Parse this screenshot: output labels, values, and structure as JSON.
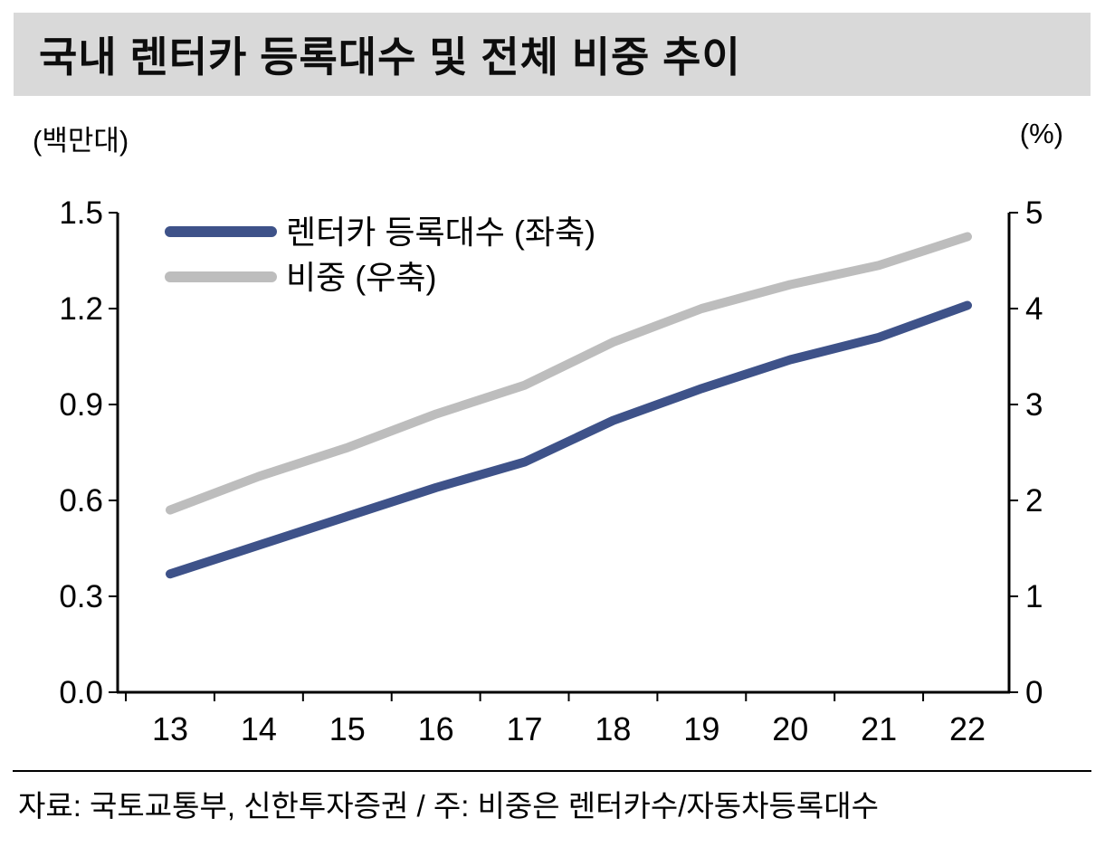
{
  "header": {
    "title": "국내 렌터카 등록대수 및 전체 비중 추이"
  },
  "axes": {
    "left_unit": "(백만대)",
    "right_unit": "(%)"
  },
  "footer": {
    "text": "자료: 국토교통부, 신한투자증권 / 주: 비중은 렌터카수/자동차등록대수"
  },
  "colors": {
    "title_bg": "#d9d9d9",
    "registrations_line": "#3e5289",
    "share_line": "#bdbdbd",
    "axis": "#000000",
    "text": "#000000"
  },
  "chart_data": {
    "type": "line",
    "title": "국내 렌터카 등록대수 및 전체 비중 추이",
    "x_categories": [
      "13",
      "14",
      "15",
      "16",
      "17",
      "18",
      "19",
      "20",
      "21",
      "22"
    ],
    "series": [
      {
        "name": "렌터카 등록대수 (좌축)",
        "axis": "left",
        "color_key": "registrations_line",
        "values": [
          0.37,
          0.46,
          0.55,
          0.64,
          0.72,
          0.85,
          0.95,
          1.04,
          1.11,
          1.21
        ]
      },
      {
        "name": "비중 (우축)",
        "axis": "right",
        "color_key": "share_line",
        "values": [
          1.9,
          2.25,
          2.55,
          2.9,
          3.2,
          3.65,
          4.0,
          4.25,
          4.45,
          4.75
        ]
      }
    ],
    "left_axis": {
      "unit": "(백만대)",
      "lim": [
        0,
        1.5
      ],
      "tick_values": [
        0,
        0.3,
        0.6,
        0.9,
        1.2,
        1.5
      ],
      "tick_labels": [
        "0.0",
        "0.3",
        "0.6",
        "0.9",
        "1.2",
        "1.5"
      ]
    },
    "right_axis": {
      "unit": "(%)",
      "lim": [
        0,
        5
      ],
      "tick_values": [
        0,
        1,
        2,
        3,
        4,
        5
      ],
      "tick_labels": [
        "0",
        "1",
        "2",
        "3",
        "4",
        "5"
      ]
    },
    "grid": false,
    "legend_position": "top-left-inside"
  }
}
